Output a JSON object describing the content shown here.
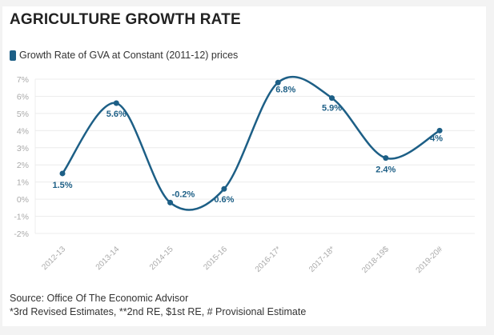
{
  "chart_data": {
    "type": "line",
    "title": "AGRICULTURE GROWTH RATE",
    "categories": [
      "2012-13",
      "2013-14",
      "2014-15",
      "2015-16",
      "2016-17*",
      "2017-18*",
      "2018-19$",
      "2019-20#"
    ],
    "series": [
      {
        "name": "Growth Rate of GVA at Constant (2011-12) prices",
        "values": [
          1.5,
          5.6,
          -0.2,
          0.6,
          6.8,
          5.9,
          2.4,
          4
        ],
        "data_labels": [
          "1.5%",
          "5.6%",
          "-0.2%",
          "0.6%",
          "6.8%",
          "5.9%",
          "2.4%",
          "4%"
        ]
      }
    ],
    "ylim": [
      -2,
      7
    ],
    "yticks": [
      "7%",
      "6%",
      "5%",
      "4%",
      "3%",
      "2%",
      "1%",
      "0%",
      "-1%",
      "-2%"
    ],
    "ytick_values": [
      7,
      6,
      5,
      4,
      3,
      2,
      1,
      0,
      -1,
      -2
    ],
    "grid": true,
    "smooth": true,
    "legend_position": "top-left",
    "xlabel": "",
    "ylabel": ""
  },
  "colors": {
    "series": "#1d5f86",
    "grid": "#ececec",
    "axis_text": "#aaaaaa"
  },
  "footer": {
    "source": "Source: Office Of The Economic Advisor",
    "note": "*3rd Revised Estimates, **2nd RE, $1st RE, # Provisional Estimate"
  }
}
